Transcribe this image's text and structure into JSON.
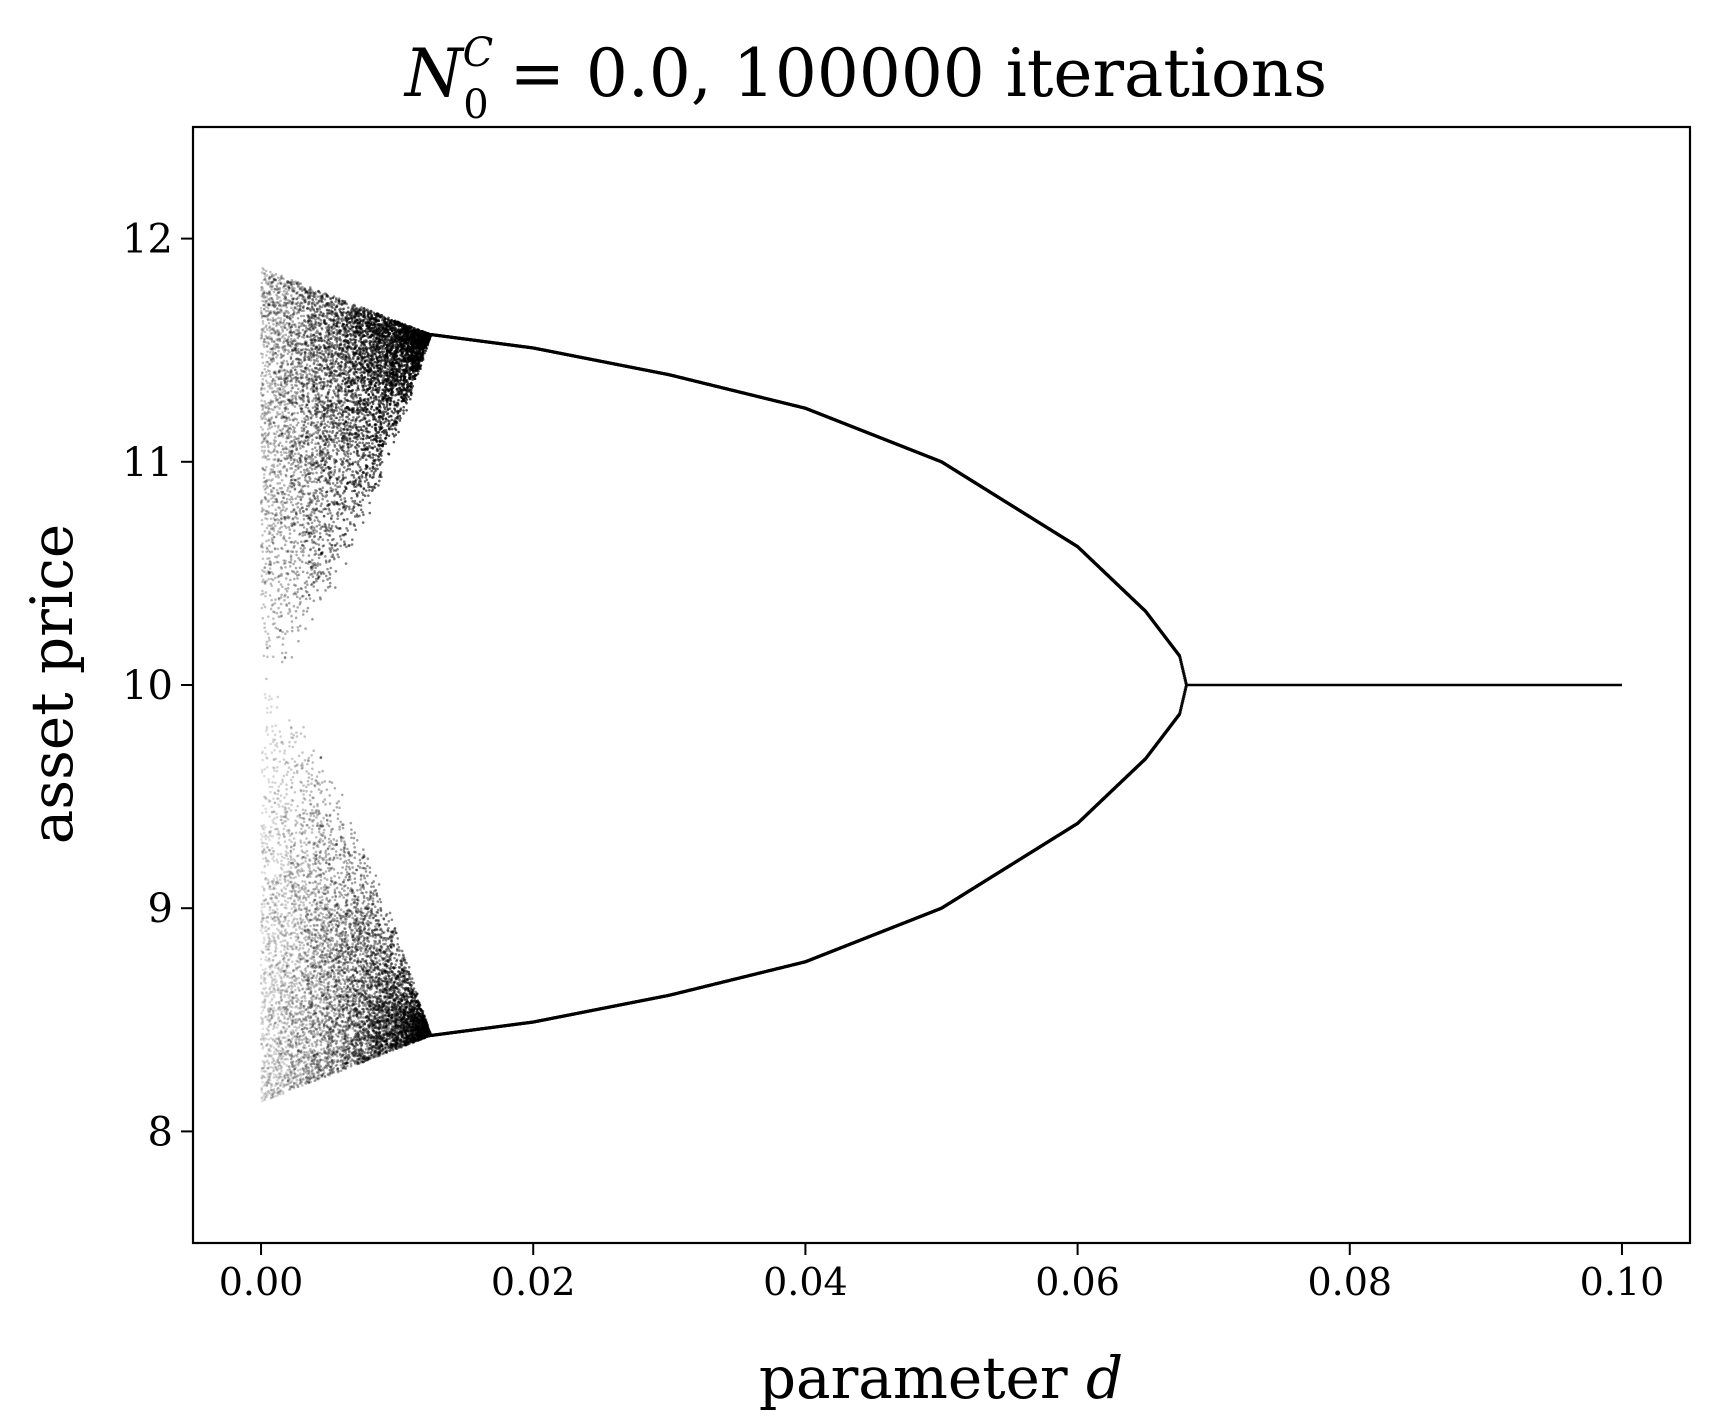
{
  "chart_data": {
    "type": "scatter",
    "title": {
      "n_symbol": "N",
      "superscript": "C",
      "subscript": "0",
      "rest": " = 0.0, 100000 iterations"
    },
    "xlabel": {
      "text": "parameter ",
      "symbol": "d"
    },
    "ylabel": "asset price",
    "xlim": [
      -0.005,
      0.105
    ],
    "ylim": [
      7.5,
      12.5
    ],
    "xticks": [
      0.0,
      0.02,
      0.04,
      0.06,
      0.08,
      0.1
    ],
    "xtick_labels": [
      "0.00",
      "0.02",
      "0.04",
      "0.06",
      "0.08",
      "0.10"
    ],
    "yticks": [
      8,
      9,
      10,
      11,
      12
    ],
    "ytick_labels": [
      "8",
      "9",
      "10",
      "11",
      "12"
    ],
    "grid": false,
    "legend": "none",
    "marker_color": "#000000",
    "regions": [
      {
        "name": "upper chaotic band",
        "x_range": [
          0.0,
          0.0125
        ],
        "y_upper_at_start": 11.87,
        "y_lower_at_start": 10.0,
        "y_converges_to": 11.57
      },
      {
        "name": "lower chaotic band",
        "x_range": [
          0.0,
          0.0125
        ],
        "y_upper_at_start": 10.0,
        "y_lower_at_start": 8.13,
        "y_converges_to": 8.43
      },
      {
        "name": "upper period-2 branch",
        "x": [
          0.0125,
          0.02,
          0.03,
          0.04,
          0.05,
          0.06,
          0.065,
          0.0675,
          0.068
        ],
        "y": [
          11.57,
          11.51,
          11.39,
          11.24,
          11.0,
          10.62,
          10.33,
          10.13,
          10.0
        ]
      },
      {
        "name": "lower period-2 branch",
        "x": [
          0.0125,
          0.02,
          0.03,
          0.04,
          0.05,
          0.06,
          0.065,
          0.0675,
          0.068
        ],
        "y": [
          8.43,
          8.49,
          8.61,
          8.76,
          9.0,
          9.38,
          9.67,
          9.87,
          10.0
        ]
      },
      {
        "name": "fixed point",
        "x": [
          0.068,
          0.1
        ],
        "y": [
          10.0,
          10.0
        ]
      }
    ]
  }
}
